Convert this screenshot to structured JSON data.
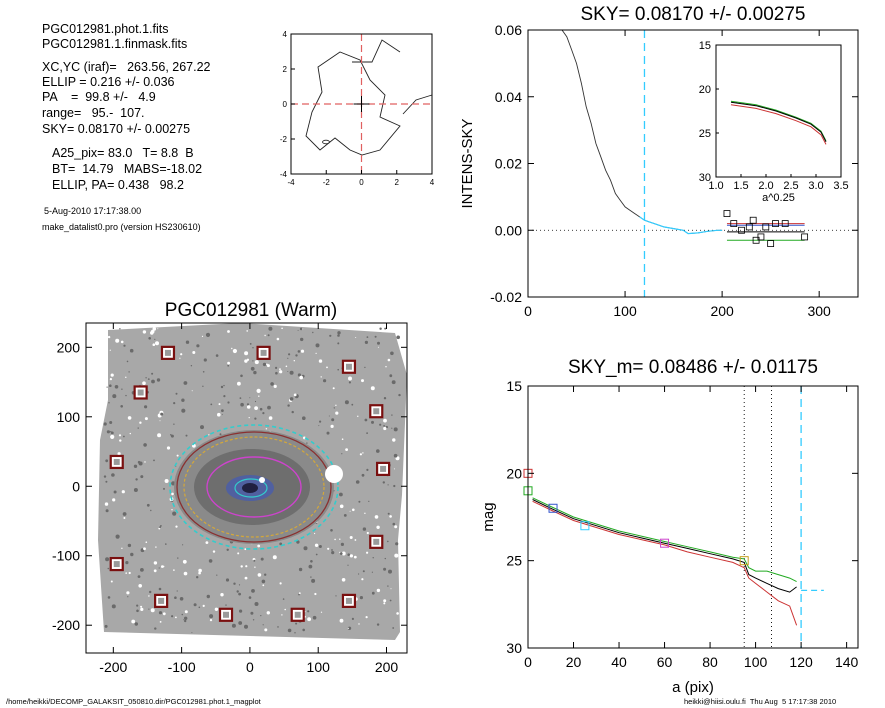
{
  "info": {
    "file1": "PGC012981.phot.1.fits",
    "file2": "PGC012981.1.finmask.fits",
    "xcyc": "XC,YC (iraf)=   263.56, 267.22",
    "ellip": "ELLIP = 0.216 +/- 0.036",
    "pa": "PA    =  99.8 +/-   4.9",
    "range": "range=   95.-  107.",
    "sky": "SKY= 0.08170 +/- 0.00275",
    "a25": "A25_pix= 83.0   T= 8.8  B",
    "bt": "BT=  14.79   MABS=-18.02",
    "ellip_pa": "ELLIP, PA= 0.438   98.2",
    "date": "5-Aug-2010 17:17:38.00",
    "program": "make_datalist0.pro (version HS230610)"
  },
  "footer": {
    "path": "/home/heikki/DECOMP_GALAKSIT_050810.dir/PGC012981.phot.1_magplot",
    "user": "heikki@hiisi.oulu.fi  Thu Aug  5 17:17:38 2010"
  },
  "colors": {
    "cyan": "#33ccff",
    "red": "#cc3333",
    "green": "#22aa22",
    "blue": "#3355cc",
    "magenta": "#cc44cc"
  },
  "chart_data": [
    {
      "id": "contour",
      "type": "scatter",
      "title": "",
      "xlim": [
        -4,
        4
      ],
      "ylim": [
        -4,
        4
      ],
      "xticks": [
        "-4",
        "-2",
        "0",
        "2",
        "4"
      ],
      "yticks": [
        "-4",
        "-2",
        "0",
        "2",
        "4"
      ],
      "crosshair": [
        0,
        0
      ]
    },
    {
      "id": "sky",
      "type": "line",
      "title": "SKY= 0.08170 +/- 0.00275",
      "xlabel": "",
      "ylabel": "INTENS-SKY",
      "xlim": [
        0,
        340
      ],
      "ylim": [
        -0.02,
        0.06
      ],
      "xticks": [
        "0",
        "100",
        "200",
        "300"
      ],
      "yticks": [
        "-0.02",
        "0.00",
        "0.02",
        "0.04",
        "0.06"
      ],
      "vline": 120,
      "profile": [
        [
          35,
          0.06
        ],
        [
          40,
          0.058
        ],
        [
          45,
          0.054
        ],
        [
          50,
          0.05
        ],
        [
          55,
          0.044
        ],
        [
          60,
          0.037
        ],
        [
          65,
          0.032
        ],
        [
          70,
          0.026
        ],
        [
          75,
          0.022
        ],
        [
          80,
          0.018
        ],
        [
          85,
          0.015
        ],
        [
          90,
          0.011
        ],
        [
          95,
          0.009
        ],
        [
          100,
          0.007
        ],
        [
          105,
          0.006
        ],
        [
          110,
          0.005
        ],
        [
          115,
          0.004
        ],
        [
          120,
          0.003
        ],
        [
          125,
          0.0025
        ],
        [
          130,
          0.002
        ],
        [
          140,
          0.001
        ],
        [
          150,
          0.0005
        ],
        [
          160,
          0.0
        ],
        [
          165,
          -0.001
        ],
        [
          175,
          -0.0008
        ],
        [
          185,
          -0.0003
        ],
        [
          195,
          0.0
        ],
        [
          200,
          0.0
        ]
      ],
      "squares": [
        [
          205,
          0.005
        ],
        [
          212,
          0.002
        ],
        [
          220,
          0.0
        ],
        [
          228,
          0.001
        ],
        [
          232,
          0.003
        ],
        [
          235,
          -0.003
        ],
        [
          240,
          -0.002
        ],
        [
          245,
          0.001
        ],
        [
          250,
          -0.004
        ],
        [
          255,
          0.002
        ],
        [
          265,
          0.002
        ],
        [
          285,
          -0.002
        ]
      ],
      "inset": {
        "xlabel": "a^0.25",
        "xlim": [
          1.0,
          3.5
        ],
        "ylim": [
          15,
          30
        ],
        "xticks": [
          "1.0",
          "1.5",
          "2.0",
          "2.5",
          "3.0",
          "3.5"
        ],
        "yticks": [
          "15",
          "20",
          "25",
          "30"
        ]
      }
    },
    {
      "id": "image",
      "type": "scatter",
      "title": "PGC012981 (Warm)",
      "xlim": [
        -240,
        230
      ],
      "ylim": [
        -240,
        235
      ],
      "xticks": [
        "-200",
        "-100",
        "0",
        "100",
        "200"
      ],
      "yticks": [
        "200",
        "100",
        "0",
        "-100",
        "-200"
      ],
      "center": [
        0,
        0
      ],
      "squares": [
        [
          -120,
          192
        ],
        [
          20,
          192
        ],
        [
          145,
          172
        ],
        [
          -160,
          135
        ],
        [
          185,
          108
        ],
        [
          -195,
          35
        ],
        [
          195,
          25
        ],
        [
          -195,
          -112
        ],
        [
          185,
          -80
        ],
        [
          -130,
          -165
        ],
        [
          -35,
          -185
        ],
        [
          70,
          -185
        ],
        [
          145,
          -165
        ]
      ]
    },
    {
      "id": "magprofile",
      "type": "line",
      "title": "SKY_m=  0.08486 +/- 0.01175",
      "xlabel": "a (pix)",
      "ylabel": "mag",
      "xlim": [
        0,
        145
      ],
      "ylim": [
        15,
        30
      ],
      "xticks": [
        "0",
        "20",
        "40",
        "60",
        "80",
        "100",
        "120",
        "140"
      ],
      "yticks": [
        "15",
        "20",
        "25",
        "30"
      ],
      "vlines": [
        95,
        107
      ],
      "sky_vline": 120,
      "series": [
        {
          "color": "#000000",
          "values": [
            [
              2,
              21.5
            ],
            [
              10,
              22.0
            ],
            [
              20,
              22.6
            ],
            [
              30,
              23.0
            ],
            [
              40,
              23.4
            ],
            [
              50,
              23.7
            ],
            [
              60,
              24.0
            ],
            [
              70,
              24.3
            ],
            [
              80,
              24.6
            ],
            [
              90,
              24.9
            ],
            [
              95,
              25.1
            ],
            [
              97,
              25.8
            ],
            [
              100,
              26.0
            ],
            [
              105,
              26.3
            ],
            [
              110,
              26.6
            ],
            [
              115,
              26.8
            ],
            [
              118,
              26.5
            ]
          ]
        },
        {
          "color": "#cc3333",
          "values": [
            [
              2,
              21.6
            ],
            [
              10,
              22.1
            ],
            [
              20,
              22.7
            ],
            [
              30,
              23.1
            ],
            [
              40,
              23.5
            ],
            [
              50,
              23.8
            ],
            [
              60,
              24.1
            ],
            [
              70,
              24.5
            ],
            [
              80,
              24.8
            ],
            [
              90,
              25.1
            ],
            [
              95,
              25.4
            ],
            [
              97,
              26.0
            ],
            [
              100,
              26.3
            ],
            [
              105,
              26.8
            ],
            [
              110,
              27.3
            ],
            [
              115,
              27.6
            ],
            [
              118,
              28.7
            ]
          ]
        },
        {
          "color": "#22aa22",
          "values": [
            [
              2,
              21.4
            ],
            [
              10,
              21.9
            ],
            [
              20,
              22.5
            ],
            [
              30,
              22.9
            ],
            [
              40,
              23.3
            ],
            [
              50,
              23.6
            ],
            [
              60,
              23.9
            ],
            [
              70,
              24.2
            ],
            [
              80,
              24.5
            ],
            [
              90,
              24.8
            ],
            [
              95,
              24.9
            ],
            [
              97,
              25.4
            ],
            [
              100,
              25.6
            ],
            [
              105,
              25.6
            ],
            [
              110,
              25.8
            ],
            [
              115,
              26.0
            ],
            [
              118,
              26.2
            ]
          ]
        }
      ],
      "markers": [
        {
          "x": 0,
          "y": 20.0,
          "color": "#cc3333"
        },
        {
          "x": 0,
          "y": 21.0,
          "color": "#22aa22"
        },
        {
          "x": 11,
          "y": 22.0,
          "color": "#3355cc"
        },
        {
          "x": 25,
          "y": 23.0,
          "color": "#33ccff"
        },
        {
          "x": 60,
          "y": 24.0,
          "color": "#cc44cc"
        },
        {
          "x": 95,
          "y": 25.0,
          "color": "#c8a020"
        }
      ],
      "sky_level": 26.7
    }
  ]
}
